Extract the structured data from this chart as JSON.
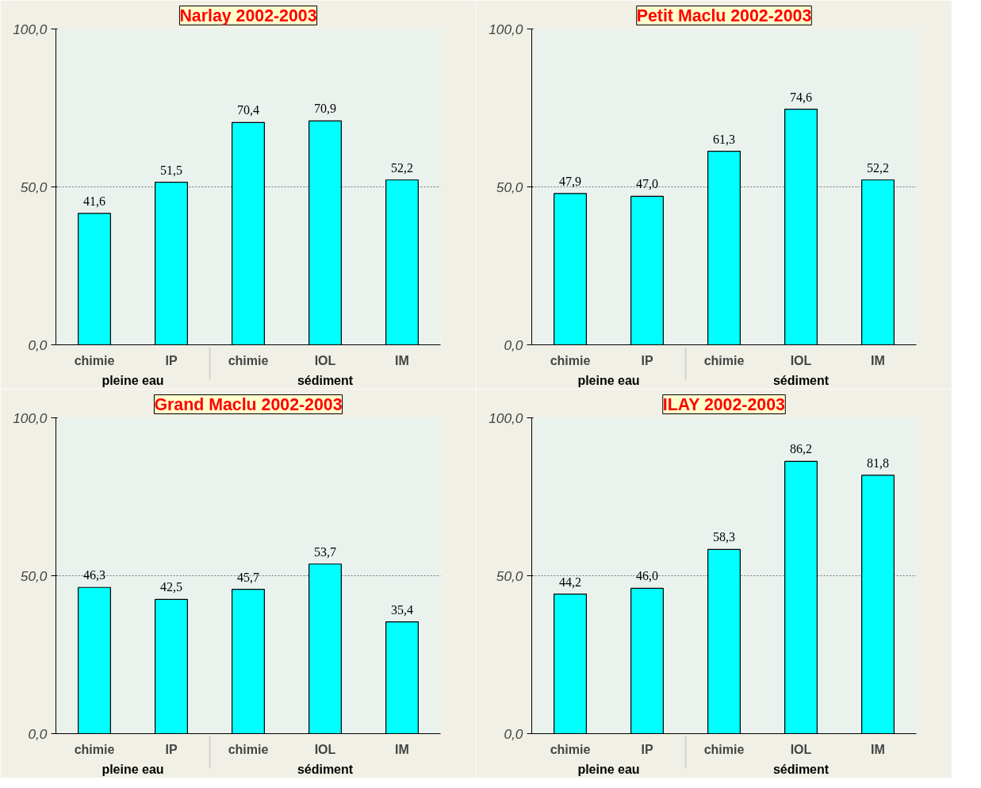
{
  "chart_data": [
    {
      "type": "bar",
      "title": "Narlay 2002-2003",
      "categories": [
        "chimie",
        "IP",
        "chimie",
        "IOL",
        "IM"
      ],
      "values": [
        41.6,
        51.5,
        70.4,
        70.9,
        52.2
      ],
      "value_labels": [
        "41,6",
        "51,5",
        "70,4",
        "70,9",
        "52,2"
      ],
      "color": "#00ffff",
      "ylim": [
        0,
        100
      ],
      "yticks": [
        {
          "value": 0,
          "label": "0,0"
        },
        {
          "value": 50,
          "label": "50,0"
        },
        {
          "value": 100,
          "label": "100,0"
        }
      ],
      "grid": "y",
      "annotations": [
        "pleine eau",
        "sédiment"
      ]
    },
    {
      "type": "bar",
      "title": "Petit Maclu 2002-2003",
      "categories": [
        "chimie",
        "IP",
        "chimie",
        "IOL",
        "IM"
      ],
      "values": [
        47.9,
        47.0,
        61.3,
        74.6,
        52.2
      ],
      "value_labels": [
        "47,9",
        "47,0",
        "61,3",
        "74,6",
        "52,2"
      ],
      "color": "#00ffff",
      "ylim": [
        0,
        100
      ],
      "yticks": [
        {
          "value": 0,
          "label": "0,0"
        },
        {
          "value": 50,
          "label": "50,0"
        },
        {
          "value": 100,
          "label": "100,0"
        }
      ],
      "grid": "y",
      "annotations": [
        "pleine eau",
        "sédiment"
      ]
    },
    {
      "type": "bar",
      "title": "Grand Maclu 2002-2003",
      "categories": [
        "chimie",
        "IP",
        "chimie",
        "IOL",
        "IM"
      ],
      "values": [
        46.3,
        42.5,
        45.7,
        53.7,
        35.4
      ],
      "value_labels": [
        "46,3",
        "42,5",
        "45,7",
        "53,7",
        "35,4"
      ],
      "color": "#00ffff",
      "ylim": [
        0,
        100
      ],
      "yticks": [
        {
          "value": 0,
          "label": "0,0"
        },
        {
          "value": 50,
          "label": "50,0"
        },
        {
          "value": 100,
          "label": "100,0"
        }
      ],
      "grid": "y",
      "annotations": [
        "pleine eau",
        "sédiment"
      ]
    },
    {
      "type": "bar",
      "title": "ILAY 2002-2003",
      "categories": [
        "chimie",
        "IP",
        "chimie",
        "IOL",
        "IM"
      ],
      "values": [
        44.2,
        46.0,
        58.3,
        86.2,
        81.8
      ],
      "value_labels": [
        "44,2",
        "46,0",
        "58,3",
        "86,2",
        "81,8"
      ],
      "color": "#00ffff",
      "ylim": [
        0,
        100
      ],
      "yticks": [
        {
          "value": 0,
          "label": "0,0"
        },
        {
          "value": 50,
          "label": "50,0"
        },
        {
          "value": 100,
          "label": "100,0"
        }
      ],
      "grid": "y",
      "annotations": [
        "pleine eau",
        "sédiment"
      ]
    }
  ]
}
